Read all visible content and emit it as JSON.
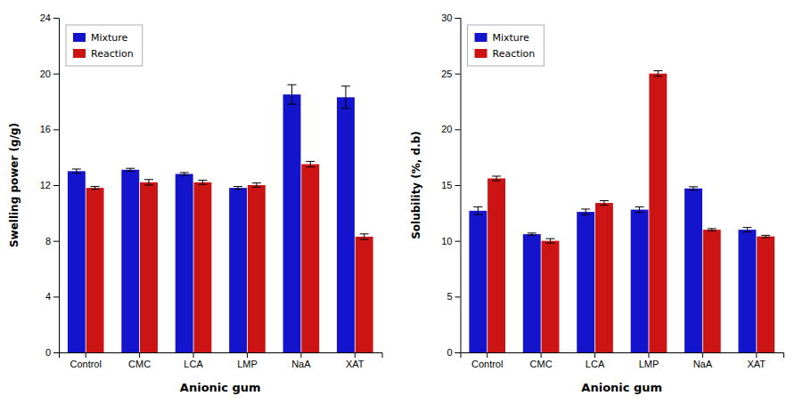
{
  "chart_data": [
    {
      "type": "bar",
      "categories": [
        "Control",
        "CMC",
        "LCA",
        "LMP",
        "NaA",
        "XAT"
      ],
      "xlabel": "Anionic gum",
      "ylabel": "Swelling power (g/g)",
      "ylim": [
        0,
        24
      ],
      "yticks": [
        0,
        4,
        8,
        12,
        16,
        20,
        24
      ],
      "grid": false,
      "legend": "upper left",
      "series": [
        {
          "name": "Mixture",
          "color": "#1414cc",
          "values": [
            13.0,
            13.1,
            12.8,
            11.8,
            18.5,
            18.3
          ],
          "errors": [
            0.15,
            0.1,
            0.1,
            0.1,
            0.7,
            0.8
          ]
        },
        {
          "name": "Reaction",
          "color": "#cc1414",
          "values": [
            11.8,
            12.2,
            12.2,
            12.0,
            13.5,
            8.3
          ],
          "errors": [
            0.1,
            0.2,
            0.15,
            0.15,
            0.2,
            0.2
          ]
        }
      ]
    },
    {
      "type": "bar",
      "categories": [
        "Control",
        "CMC",
        "LCA",
        "LMP",
        "NaA",
        "XAT"
      ],
      "xlabel": "Anionic gum",
      "ylabel": "Solubility (%, d.b)",
      "ylim": [
        0,
        30
      ],
      "yticks": [
        0,
        5,
        10,
        15,
        20,
        25,
        30
      ],
      "grid": false,
      "legend": "upper left",
      "series": [
        {
          "name": "Mixture",
          "color": "#1414cc",
          "values": [
            12.7,
            10.6,
            12.6,
            12.8,
            14.7,
            11.0
          ],
          "errors": [
            0.35,
            0.1,
            0.25,
            0.25,
            0.15,
            0.2
          ]
        },
        {
          "name": "Reaction",
          "color": "#cc1414",
          "values": [
            15.6,
            10.0,
            13.4,
            25.0,
            11.0,
            10.4
          ],
          "errors": [
            0.2,
            0.2,
            0.2,
            0.25,
            0.1,
            0.1
          ]
        }
      ]
    }
  ]
}
